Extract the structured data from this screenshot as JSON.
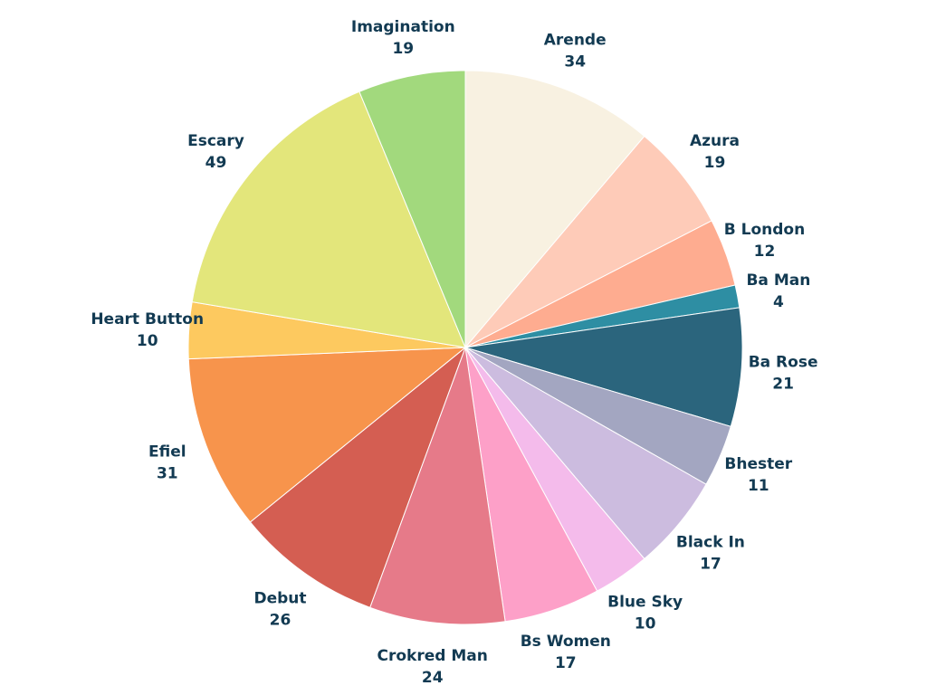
{
  "chart_data": {
    "type": "pie",
    "title": "",
    "start_angle_deg": 0,
    "direction": "clockwise",
    "label_color": "#123a52",
    "slices": [
      {
        "label": "Arende",
        "value": 34,
        "color": "#f8f1e1"
      },
      {
        "label": "Azura",
        "value": 19,
        "color": "#fecbb8"
      },
      {
        "label": "B London",
        "value": 12,
        "color": "#feac90"
      },
      {
        "label": "Ba Man",
        "value": 4,
        "color": "#2e8ea3"
      },
      {
        "label": "Ba Rose",
        "value": 21,
        "color": "#2b657d"
      },
      {
        "label": "Bhester",
        "value": 11,
        "color": "#a3a6c1"
      },
      {
        "label": "Black In",
        "value": 17,
        "color": "#ccbcdf"
      },
      {
        "label": "Blue Sky",
        "value": 10,
        "color": "#f4bbeb"
      },
      {
        "label": "Bs Women",
        "value": 17,
        "color": "#fda0c8"
      },
      {
        "label": "Crokred Man",
        "value": 24,
        "color": "#e67a89"
      },
      {
        "label": "Debut",
        "value": 26,
        "color": "#d45e52"
      },
      {
        "label": "Efiel",
        "value": 31,
        "color": "#f7944c"
      },
      {
        "label": "Heart Button",
        "value": 10,
        "color": "#fdc95f"
      },
      {
        "label": "Escary",
        "value": 49,
        "color": "#e3e67b"
      },
      {
        "label": "Imagination",
        "value": 19,
        "color": "#a2d97d"
      }
    ]
  }
}
